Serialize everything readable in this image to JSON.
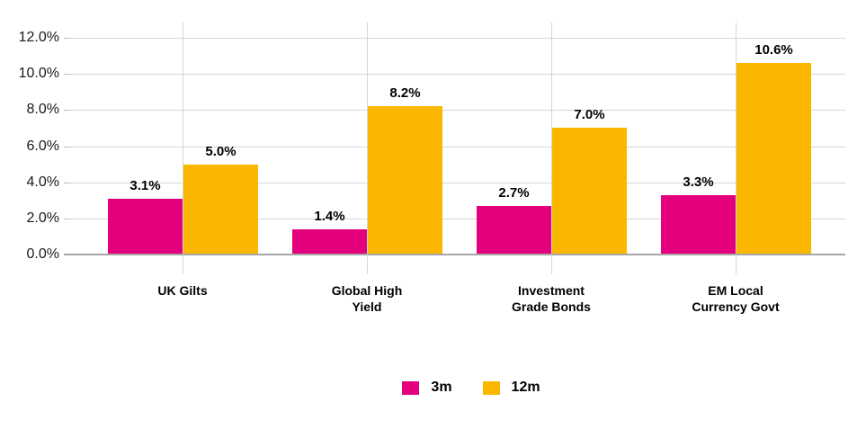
{
  "chart_data": {
    "type": "bar",
    "title": "",
    "categories": [
      "UK Gilts",
      "Global High\nYield",
      "Investment\nGrade Bonds",
      "EM Local\nCurrency Govt"
    ],
    "series": [
      {
        "name": "3m",
        "color": "#e4007d",
        "values": [
          3.1,
          1.4,
          2.7,
          3.3
        ]
      },
      {
        "name": "12m",
        "color": "#fbb700",
        "values": [
          5.0,
          8.2,
          7.0,
          10.6
        ]
      }
    ],
    "value_labels": [
      [
        "3.1%",
        "1.4%",
        "2.7%",
        "3.3%"
      ],
      [
        "5.0%",
        "8.2%",
        "7.0%",
        "10.6%"
      ]
    ],
    "y_axis": {
      "ticks": [
        "12.0%",
        "10.0%",
        "8.0%",
        "6.0%",
        "4.0%",
        "2.0%",
        "0.0%"
      ],
      "tick_values": [
        12,
        10,
        8,
        6,
        4,
        2,
        0
      ],
      "min": 0,
      "max": 12
    },
    "xlabel": "",
    "ylabel": "",
    "legend": {
      "position": "bottom",
      "entries": [
        "3m",
        "12m"
      ]
    },
    "grid": {
      "horizontal": true,
      "vertical": true
    },
    "colors": {
      "gridline": "#d6d6d6",
      "axis_line": "#a6a6a6",
      "tick": "#bfbfbf",
      "text": "#000000",
      "background": "#ffffff"
    }
  }
}
